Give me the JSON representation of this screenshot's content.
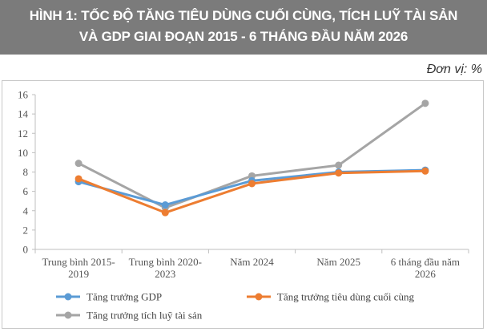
{
  "header": {
    "title_line1": "HÌNH 1: TỐC ĐỘ TĂNG TIÊU DÙNG CUỐI CÙNG, TÍCH LUỸ TÀI SẢN",
    "title_line2": "VÀ GDP GIAI ĐOẠN 2015 - 6 THÁNG ĐẦU NĂM 2026"
  },
  "unit_label": "Đơn vị: %",
  "chart_data": {
    "type": "line",
    "categories": [
      [
        "Trung bình 2015-",
        "2019"
      ],
      [
        "Trung bình 2020-",
        "2023"
      ],
      [
        "Năm 2024"
      ],
      [
        "Năm 2025"
      ],
      [
        "6 tháng đầu năm",
        "2026"
      ]
    ],
    "yticks": [
      "0",
      "2",
      "4",
      "6",
      "8",
      "10",
      "12",
      "14",
      "16"
    ],
    "ylim": [
      0,
      16
    ],
    "grid": false,
    "legend_position": "bottom",
    "series": [
      {
        "name": "Tăng trưởng GDP",
        "color": "#5b9bd5",
        "values": [
          7.0,
          4.6,
          7.1,
          8.0,
          8.2
        ]
      },
      {
        "name": "Tăng trưởng tiêu dùng cuối cùng",
        "color": "#ed7d31",
        "values": [
          7.3,
          3.8,
          6.8,
          7.9,
          8.1
        ]
      },
      {
        "name": "Tăng trưởng tích luỹ tài sản",
        "color": "#a5a5a5",
        "values": [
          8.9,
          4.3,
          7.6,
          8.7,
          15.1
        ]
      }
    ]
  }
}
